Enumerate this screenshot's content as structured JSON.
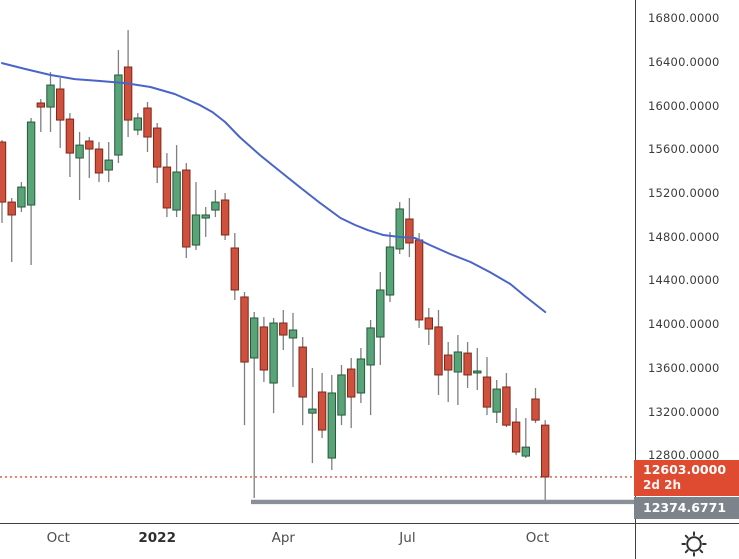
{
  "window": {
    "background": "#ffffff"
  },
  "price_axis": {
    "ticks": [
      {
        "label": "16800.0000",
        "value": 16800
      },
      {
        "label": "16400.0000",
        "value": 16400
      },
      {
        "label": "16000.0000",
        "value": 16000
      },
      {
        "label": "15600.0000",
        "value": 15600
      },
      {
        "label": "15200.0000",
        "value": 15200
      },
      {
        "label": "14800.0000",
        "value": 14800
      },
      {
        "label": "14400.0000",
        "value": 14400
      },
      {
        "label": "14000.0000",
        "value": 14000
      },
      {
        "label": "13600.0000",
        "value": 13600
      },
      {
        "label": "13200.0000",
        "value": 13200
      },
      {
        "label": "12800.0000",
        "value": 12800
      }
    ],
    "current_price_label": {
      "price": "12603.0000",
      "countdown": "2d 2h",
      "bg": "#DE4B30"
    },
    "level_label": {
      "price": "12374.6771",
      "bg": "#7C838B"
    }
  },
  "time_axis": {
    "ticks": [
      {
        "label": "Oct",
        "i": 5.8,
        "bold": false
      },
      {
        "label": "2022",
        "i": 16,
        "bold": true
      },
      {
        "label": "Apr",
        "i": 29,
        "bold": false
      },
      {
        "label": "Jul",
        "i": 41.8,
        "bold": false
      },
      {
        "label": "Oct",
        "i": 55.2,
        "bold": false
      }
    ]
  },
  "icons": {
    "settings": "gear-icon"
  },
  "chart_data": {
    "type": "candlestick",
    "timeframe_hint": "weekly",
    "title": "",
    "ylim": [
      12182,
      16965
    ],
    "x_start": 2,
    "x_step": 9.7,
    "grid": false,
    "y_ticks": [
      16800,
      16400,
      16000,
      15600,
      15200,
      14800,
      14400,
      14000,
      13600,
      13200,
      12800
    ],
    "x_tick_labels": [
      "Oct",
      "2022",
      "Apr",
      "Jul",
      "Oct"
    ],
    "levels": {
      "current_price": 12603.0,
      "support": 12374.6771,
      "support_x_start": 251
    },
    "colors": {
      "up_fill": "#58A377",
      "up_stroke": "#27593B",
      "down_fill": "#D0503E",
      "down_stroke": "#7E281A",
      "wick": "#7f7f7f",
      "ma": "#4A64C8",
      "current_line": "#DE4F39",
      "support_bar": "#8A9097"
    },
    "series": {
      "candles": [
        [
          15666,
          15684,
          14926,
          15117
        ],
        [
          15117,
          15154,
          14569,
          14999
        ],
        [
          15072,
          15300,
          15026,
          15254
        ],
        [
          15090,
          15886,
          14541,
          15849
        ],
        [
          16023,
          16059,
          15758,
          15986
        ],
        [
          15986,
          16306,
          15758,
          16187
        ],
        [
          16151,
          16251,
          15611,
          15867
        ],
        [
          15876,
          15931,
          15346,
          15565
        ],
        [
          15520,
          15758,
          15136,
          15638
        ],
        [
          15675,
          15712,
          15337,
          15602
        ],
        [
          15602,
          15666,
          15300,
          15383
        ],
        [
          15410,
          15666,
          15300,
          15501
        ],
        [
          15547,
          16507,
          15474,
          16279
        ],
        [
          16352,
          16690,
          15712,
          15867
        ],
        [
          15776,
          15931,
          15730,
          15886
        ],
        [
          15977,
          16032,
          15575,
          15712
        ],
        [
          15794,
          15840,
          15291,
          15437
        ],
        [
          15437,
          15565,
          14980,
          15063
        ],
        [
          15044,
          15638,
          14980,
          15392
        ],
        [
          15410,
          15474,
          14605,
          14706
        ],
        [
          14724,
          15300,
          14679,
          14999
        ],
        [
          14971,
          15072,
          14798,
          14999
        ],
        [
          15044,
          15227,
          14980,
          15117
        ],
        [
          15136,
          15200,
          14770,
          14816
        ],
        [
          14697,
          14834,
          14221,
          14313
        ],
        [
          14249,
          14294,
          13077,
          13654
        ],
        [
          13691,
          14112,
          12411,
          14057
        ],
        [
          13975,
          14066,
          13472,
          13581
        ],
        [
          13462,
          14057,
          13187,
          14011
        ],
        [
          14011,
          14130,
          13764,
          13901
        ],
        [
          13874,
          14103,
          13426,
          13947
        ],
        [
          13791,
          13883,
          13077,
          13334
        ],
        [
          13187,
          13599,
          12730,
          13224
        ],
        [
          13380,
          13554,
          12959,
          13032
        ],
        [
          12776,
          13536,
          12667,
          13371
        ],
        [
          13169,
          13627,
          13077,
          13536
        ],
        [
          13590,
          13691,
          13050,
          13334
        ],
        [
          13371,
          13782,
          13279,
          13682
        ],
        [
          13627,
          14039,
          13169,
          13966
        ],
        [
          13883,
          14477,
          13627,
          14313
        ],
        [
          14267,
          14843,
          14203,
          14706
        ],
        [
          14688,
          15117,
          14642,
          15054
        ],
        [
          14962,
          15154,
          14614,
          14743
        ],
        [
          14770,
          14834,
          13966,
          14039
        ],
        [
          14057,
          14148,
          13810,
          13956
        ],
        [
          13975,
          14130,
          13352,
          13536
        ],
        [
          13718,
          13837,
          13288,
          13581
        ],
        [
          13563,
          13901,
          13261,
          13746
        ],
        [
          13736,
          13837,
          13417,
          13536
        ],
        [
          13554,
          13782,
          13398,
          13572
        ],
        [
          13517,
          13700,
          13169,
          13242
        ],
        [
          13196,
          13490,
          13096,
          13407
        ],
        [
          13426,
          13554,
          13059,
          13077
        ],
        [
          13105,
          13233,
          12803,
          12831
        ],
        [
          12794,
          13141,
          12776,
          12876
        ],
        [
          13316,
          13417,
          13096,
          13123
        ],
        [
          13077,
          13123,
          12393,
          12603
        ]
      ],
      "ma": [
        [
          0,
          16388
        ],
        [
          2.4,
          16334
        ],
        [
          5,
          16279
        ],
        [
          7.5,
          16242
        ],
        [
          10.1,
          16224
        ],
        [
          12.7,
          16205
        ],
        [
          15.3,
          16169
        ],
        [
          17.8,
          16105
        ],
        [
          20.4,
          16004
        ],
        [
          21.7,
          15940
        ],
        [
          23,
          15849
        ],
        [
          24.5,
          15712
        ],
        [
          26.6,
          15547
        ],
        [
          28.5,
          15410
        ],
        [
          30.7,
          15254
        ],
        [
          32.8,
          15108
        ],
        [
          34.9,
          14971
        ],
        [
          36.4,
          14907
        ],
        [
          37.7,
          14861
        ],
        [
          39.3,
          14816
        ],
        [
          41,
          14798
        ],
        [
          42.6,
          14788
        ],
        [
          44.1,
          14724
        ],
        [
          46.2,
          14642
        ],
        [
          48.3,
          14569
        ],
        [
          50.3,
          14477
        ],
        [
          52.4,
          14368
        ],
        [
          53.9,
          14258
        ],
        [
          56,
          14112
        ]
      ]
    }
  }
}
